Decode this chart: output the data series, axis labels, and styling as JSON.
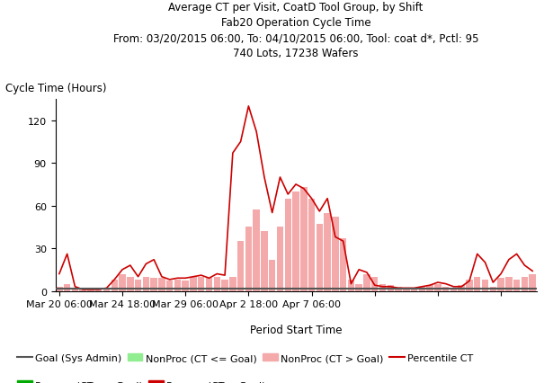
{
  "title_lines": [
    "Average CT per Visit, CoatD Tool Group, by Shift",
    "Fab20 Operation Cycle Time",
    "From: 03/20/2015 06:00, To: 04/10/2015 06:00, Tool: coat d*, Pctl: 95",
    "740 Lots, 17238 Wafers"
  ],
  "ylabel": "Cycle Time (Hours)",
  "xlabel": "Period Start Time",
  "ylim": [
    0,
    135
  ],
  "yticks": [
    0,
    30,
    60,
    90,
    120
  ],
  "bar_heights": [
    3,
    5,
    1,
    2,
    1,
    1,
    2,
    8,
    12,
    10,
    8,
    10,
    9,
    9,
    7,
    8,
    7,
    10,
    10,
    9,
    10,
    8,
    10,
    35,
    45,
    57,
    42,
    22,
    45,
    65,
    70,
    73,
    65,
    47,
    55,
    52,
    37,
    8,
    5,
    12,
    10,
    5,
    4,
    3,
    2,
    2,
    3,
    4,
    5,
    3,
    2,
    4,
    8,
    10,
    8,
    3,
    9,
    10,
    8,
    10,
    12
  ],
  "bar_color": "#F4AAAA",
  "line_values": [
    12,
    26,
    3,
    1,
    1,
    1,
    2,
    8,
    15,
    18,
    10,
    19,
    22,
    10,
    8,
    9,
    9,
    10,
    11,
    9,
    12,
    11,
    97,
    105,
    130,
    112,
    80,
    55,
    80,
    68,
    75,
    72,
    65,
    56,
    65,
    38,
    35,
    5,
    15,
    13,
    4,
    3,
    3,
    2,
    2,
    2,
    3,
    4,
    6,
    5,
    3,
    3,
    7,
    26,
    20,
    6,
    12,
    22,
    26,
    18,
    14
  ],
  "line_color": "#CC0000",
  "goal_line_y": 1.5,
  "goal_line_color": "#555555",
  "xtick_positions": [
    0,
    8,
    16,
    24,
    32,
    40,
    48,
    56
  ],
  "xtick_labels": [
    "Mar 20 06:00",
    "Mar 24 18:00",
    "Mar 29 06:00",
    "Apr 2 18:00",
    "Apr 7 06:00",
    "",
    "",
    ""
  ],
  "background_color": "#ffffff",
  "nonproc_ok_color": "#90EE90",
  "proc_ok_color": "#00AA00",
  "proc_bad_color": "#CC0000"
}
